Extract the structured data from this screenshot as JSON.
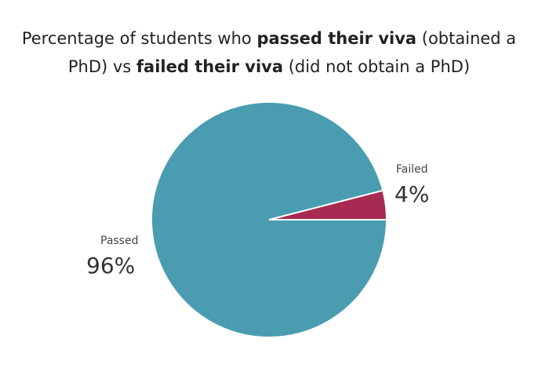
{
  "chart_data": {
    "type": "pie",
    "title": [
      [
        {
          "text": "Percentage of students who ",
          "bold": false
        },
        {
          "text": "passed their viva",
          "bold": true
        },
        {
          "text": " (obtained a",
          "bold": false
        }
      ],
      [
        {
          "text": "PhD) vs ",
          "bold": false
        },
        {
          "text": "failed their viva",
          "bold": true
        },
        {
          "text": " (did not obtain a PhD)",
          "bold": false
        }
      ]
    ],
    "categories": [
      "Failed",
      "Passed"
    ],
    "values": [
      4,
      96
    ],
    "value_labels": [
      "4%",
      "96%"
    ],
    "colors": [
      "#a62a52",
      "#4a9db0"
    ]
  }
}
